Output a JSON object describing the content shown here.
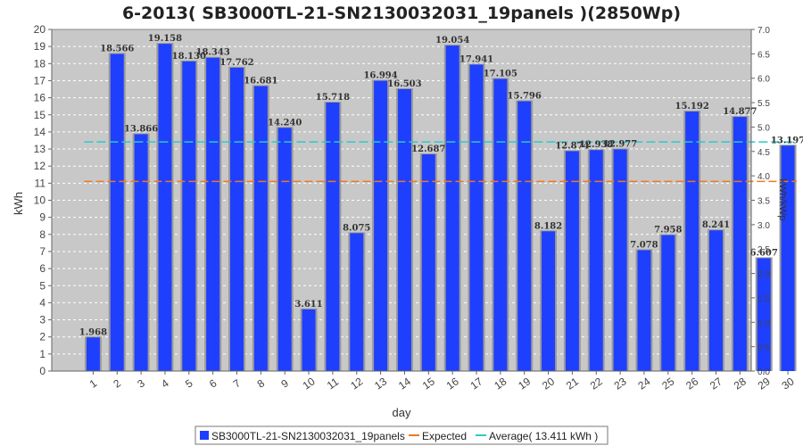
{
  "chart_data": {
    "type": "bar",
    "title": "6-2013( SB3000TL-21-SN2130032031_19panels )(2850Wp)",
    "xlabel": "day",
    "ylabel": "kWh",
    "ylabel_right": "kWh/kWp",
    "ylim": [
      0,
      20
    ],
    "ylim_right": [
      0,
      7.0
    ],
    "y_ticks": [
      0,
      1,
      2,
      3,
      4,
      5,
      6,
      7,
      8,
      9,
      10,
      11,
      12,
      13,
      14,
      15,
      16,
      17,
      18,
      19,
      20
    ],
    "y_ticks_right": [
      "0.0",
      "0.5",
      "1.0",
      "1.5",
      "2.0",
      "2.5",
      "3.0",
      "3.5",
      "4.0",
      "4.5",
      "5.0",
      "5.5",
      "6.0",
      "6.5",
      "7.0"
    ],
    "categories": [
      "1",
      "2",
      "3",
      "4",
      "5",
      "6",
      "7",
      "8",
      "9",
      "10",
      "11",
      "12",
      "13",
      "14",
      "15",
      "16",
      "17",
      "18",
      "19",
      "20",
      "21",
      "22",
      "23",
      "24",
      "25",
      "26",
      "27",
      "28",
      "29",
      "30"
    ],
    "series": [
      {
        "name": "SB3000TL-21-SN2130032031_19panels",
        "type": "bar",
        "color": "#1f3fff",
        "values": [
          1.968,
          18.566,
          13.866,
          19.158,
          18.13,
          18.343,
          17.762,
          16.681,
          14.24,
          3.611,
          15.718,
          8.075,
          16.994,
          16.503,
          12.687,
          19.054,
          17.941,
          17.105,
          15.796,
          8.182,
          12.874,
          12.938,
          12.977,
          7.078,
          7.958,
          15.192,
          8.241,
          14.877,
          6.607,
          13.197
        ],
        "labels": [
          "1.968",
          "18.566",
          "13.866",
          "19.158",
          "18.130",
          "18.343",
          "17.762",
          "16.681",
          "14.240",
          "3.611",
          "15.718",
          "8.075",
          "16.994",
          "16.503",
          "12.687",
          "19.054",
          "17.941",
          "17.105",
          "15.796",
          "8.182",
          "12.874",
          "12.938",
          "12.977",
          "7.078",
          "7.958",
          "15.192",
          "8.241",
          "14.877",
          "6.607",
          "13.197"
        ]
      },
      {
        "name": "Expected",
        "type": "line",
        "color": "#f07820",
        "value": 11.1
      },
      {
        "name": "Average( 13.411 kWh )",
        "type": "line",
        "color": "#30c8c8",
        "value": 13.411
      }
    ],
    "grid": true,
    "legend_position": "bottom-center"
  }
}
